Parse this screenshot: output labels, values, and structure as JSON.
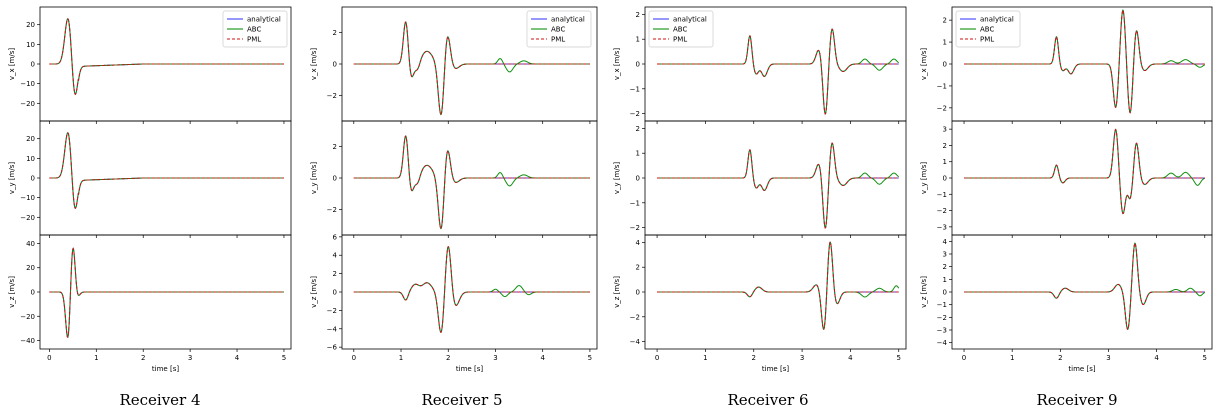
{
  "colors": {
    "analytical": "#3f3fff",
    "ABC": "#0f8f0f",
    "PML": "#d01010"
  },
  "legend": [
    "analytical",
    "ABC",
    "PML"
  ],
  "xlabel": "time [s]",
  "ylabels": [
    "v_x [m/s]",
    "v_y [m/s]",
    "v_z [m/s]"
  ],
  "chart_data": [
    {
      "type": "line",
      "caption": "Receiver 4",
      "xlim": [
        -0.2,
        5.15
      ],
      "xticks": [
        0,
        1,
        2,
        3,
        4,
        5
      ],
      "panels": [
        {
          "component": "x",
          "ylim": [
            -29,
            29
          ],
          "yticks": [
            -20,
            -10,
            0,
            10,
            20
          ],
          "pulses": [
            [
              0.4,
              24,
              0.07
            ],
            [
              0.54,
              -18,
              0.06
            ]
          ],
          "tail": [
            [
              0.62,
              2.0,
              -1.2,
              0.0
            ]
          ],
          "abc": []
        },
        {
          "component": "y",
          "ylim": [
            -29,
            29
          ],
          "yticks": [
            -20,
            -10,
            0,
            10,
            20
          ],
          "pulses": [
            [
              0.4,
              24,
              0.07
            ],
            [
              0.54,
              -18,
              0.06
            ]
          ],
          "tail": [
            [
              0.62,
              2.0,
              -1.2,
              0.0
            ]
          ],
          "abc": []
        },
        {
          "component": "z",
          "ylim": [
            -47,
            47
          ],
          "yticks": [
            -40,
            -20,
            0,
            20,
            40
          ],
          "pulses": [
            [
              0.4,
              -42,
              0.05
            ],
            [
              0.5,
              43,
              0.05
            ],
            [
              0.58,
              -7,
              0.05
            ]
          ],
          "tail": [],
          "abc": []
        }
      ]
    },
    {
      "type": "line",
      "caption": "Receiver 5",
      "xlim": [
        -0.25,
        5.15
      ],
      "xticks": [
        0,
        1,
        2,
        3,
        4,
        5
      ],
      "panels": [
        {
          "component": "x",
          "ylim": [
            -3.6,
            3.6
          ],
          "yticks": [
            -2,
            0,
            2
          ],
          "pulses": [
            [
              1.1,
              2.7,
              0.05
            ],
            [
              1.22,
              -0.9,
              0.05
            ],
            [
              1.35,
              -0.5,
              0.05
            ],
            [
              1.55,
              0.8,
              0.12
            ],
            [
              1.85,
              -3.4,
              0.06
            ],
            [
              1.98,
              2.0,
              0.06
            ],
            [
              2.15,
              -0.3,
              0.08
            ]
          ],
          "tail": [],
          "abc": [
            [
              3.1,
              0.35,
              0.05
            ],
            [
              3.3,
              -0.5,
              0.07
            ],
            [
              3.6,
              0.2,
              0.08
            ]
          ]
        },
        {
          "component": "y",
          "ylim": [
            -3.6,
            3.6
          ],
          "yticks": [
            -2,
            0,
            2
          ],
          "pulses": [
            [
              1.1,
              2.7,
              0.05
            ],
            [
              1.22,
              -0.9,
              0.05
            ],
            [
              1.35,
              -0.5,
              0.05
            ],
            [
              1.55,
              0.8,
              0.12
            ],
            [
              1.85,
              -3.4,
              0.06
            ],
            [
              1.98,
              2.0,
              0.06
            ],
            [
              2.15,
              -0.3,
              0.08
            ]
          ],
          "tail": [],
          "abc": [
            [
              3.1,
              0.35,
              0.05
            ],
            [
              3.3,
              -0.5,
              0.07
            ],
            [
              3.6,
              0.2,
              0.08
            ]
          ]
        },
        {
          "component": "z",
          "ylim": [
            -6.2,
            6.2
          ],
          "yticks": [
            -6,
            -4,
            -2,
            0,
            2,
            4,
            6
          ],
          "pulses": [
            [
              1.1,
              -0.9,
              0.05
            ],
            [
              1.3,
              0.8,
              0.08
            ],
            [
              1.55,
              1.0,
              0.1
            ],
            [
              1.85,
              -4.6,
              0.06
            ],
            [
              2.0,
              5.4,
              0.06
            ],
            [
              2.15,
              -1.6,
              0.08
            ]
          ],
          "tail": [],
          "abc": [
            [
              3.0,
              0.3,
              0.05
            ],
            [
              3.2,
              -0.5,
              0.06
            ],
            [
              3.5,
              0.7,
              0.07
            ],
            [
              3.7,
              -0.3,
              0.06
            ]
          ]
        }
      ]
    },
    {
      "type": "line",
      "caption": "Receiver 6",
      "xlim": [
        -0.25,
        5.15
      ],
      "xticks": [
        0,
        1,
        2,
        3,
        4,
        5
      ],
      "panels": [
        {
          "component": "x",
          "ylim": [
            -2.3,
            2.3
          ],
          "yticks": [
            -2,
            -1,
            0,
            1,
            2
          ],
          "pulses": [
            [
              1.92,
              1.15,
              0.04
            ],
            [
              2.05,
              -0.4,
              0.05
            ],
            [
              2.22,
              -0.5,
              0.06
            ],
            [
              3.35,
              0.6,
              0.06
            ],
            [
              3.48,
              -2.1,
              0.05
            ],
            [
              3.62,
              1.45,
              0.05
            ],
            [
              3.85,
              -0.3,
              0.08
            ]
          ],
          "tail": [],
          "abc": [
            [
              4.3,
              0.2,
              0.06
            ],
            [
              4.6,
              -0.25,
              0.07
            ],
            [
              4.9,
              0.2,
              0.06
            ]
          ]
        },
        {
          "component": "y",
          "ylim": [
            -2.3,
            2.3
          ],
          "yticks": [
            -2,
            -1,
            0,
            1,
            2
          ],
          "pulses": [
            [
              1.92,
              1.15,
              0.04
            ],
            [
              2.05,
              -0.4,
              0.05
            ],
            [
              2.22,
              -0.5,
              0.06
            ],
            [
              3.35,
              0.6,
              0.06
            ],
            [
              3.48,
              -2.1,
              0.05
            ],
            [
              3.62,
              1.45,
              0.05
            ],
            [
              3.85,
              -0.3,
              0.08
            ]
          ],
          "tail": [],
          "abc": [
            [
              4.3,
              0.2,
              0.06
            ],
            [
              4.6,
              -0.25,
              0.07
            ],
            [
              4.9,
              0.2,
              0.06
            ]
          ]
        },
        {
          "component": "z",
          "ylim": [
            -4.6,
            4.6
          ],
          "yticks": [
            -4,
            -2,
            0,
            2,
            4
          ],
          "pulses": [
            [
              1.92,
              -0.4,
              0.05
            ],
            [
              2.1,
              0.4,
              0.07
            ],
            [
              3.3,
              0.6,
              0.07
            ],
            [
              3.45,
              -3.2,
              0.05
            ],
            [
              3.58,
              4.2,
              0.05
            ],
            [
              3.72,
              -1.0,
              0.06
            ]
          ],
          "tail": [],
          "abc": [
            [
              4.3,
              -0.4,
              0.07
            ],
            [
              4.6,
              0.3,
              0.07
            ],
            [
              4.95,
              0.5,
              0.05
            ]
          ]
        }
      ]
    },
    {
      "type": "line",
      "caption": "Receiver 9",
      "xlim": [
        -0.25,
        5.15
      ],
      "xticks": [
        0,
        1,
        2,
        3,
        4,
        5
      ],
      "panels": [
        {
          "component": "x",
          "ylim": [
            -2.6,
            2.6
          ],
          "yticks": [
            -2,
            -1,
            0,
            1,
            2
          ],
          "pulses": [
            [
              1.92,
              1.25,
              0.04
            ],
            [
              2.05,
              -0.3,
              0.05
            ],
            [
              2.22,
              -0.45,
              0.06
            ],
            [
              3.15,
              -2.0,
              0.05
            ],
            [
              3.3,
              2.5,
              0.05
            ],
            [
              3.45,
              -2.3,
              0.05
            ],
            [
              3.58,
              1.6,
              0.05
            ],
            [
              3.75,
              -0.3,
              0.07
            ]
          ],
          "tail": [],
          "abc": [
            [
              4.3,
              0.15,
              0.07
            ],
            [
              4.6,
              0.2,
              0.08
            ],
            [
              4.9,
              -0.15,
              0.06
            ]
          ]
        },
        {
          "component": "y",
          "ylim": [
            -3.5,
            3.5
          ],
          "yticks": [
            -3,
            -2,
            -1,
            0,
            1,
            2,
            3
          ],
          "pulses": [
            [
              1.92,
              0.8,
              0.04
            ],
            [
              2.05,
              -0.3,
              0.05
            ],
            [
              3.15,
              3.0,
              0.05
            ],
            [
              3.3,
              -2.2,
              0.05
            ],
            [
              3.45,
              -1.3,
              0.05
            ],
            [
              3.58,
              2.2,
              0.05
            ],
            [
              3.75,
              -0.4,
              0.07
            ]
          ],
          "tail": [],
          "abc": [
            [
              4.3,
              0.3,
              0.07
            ],
            [
              4.6,
              0.35,
              0.07
            ],
            [
              4.85,
              -0.45,
              0.06
            ]
          ]
        },
        {
          "component": "z",
          "ylim": [
            -4.5,
            4.5
          ],
          "yticks": [
            -4,
            -3,
            -2,
            -1,
            0,
            1,
            2,
            3,
            4
          ],
          "pulses": [
            [
              1.92,
              -0.5,
              0.05
            ],
            [
              2.1,
              0.3,
              0.07
            ],
            [
              3.2,
              0.6,
              0.07
            ],
            [
              3.4,
              -3.0,
              0.05
            ],
            [
              3.55,
              3.9,
              0.05
            ],
            [
              3.72,
              -1.0,
              0.06
            ]
          ],
          "tail": [],
          "abc": [
            [
              4.4,
              0.2,
              0.07
            ],
            [
              4.7,
              0.3,
              0.06
            ],
            [
              4.9,
              -0.3,
              0.05
            ]
          ]
        }
      ]
    }
  ]
}
